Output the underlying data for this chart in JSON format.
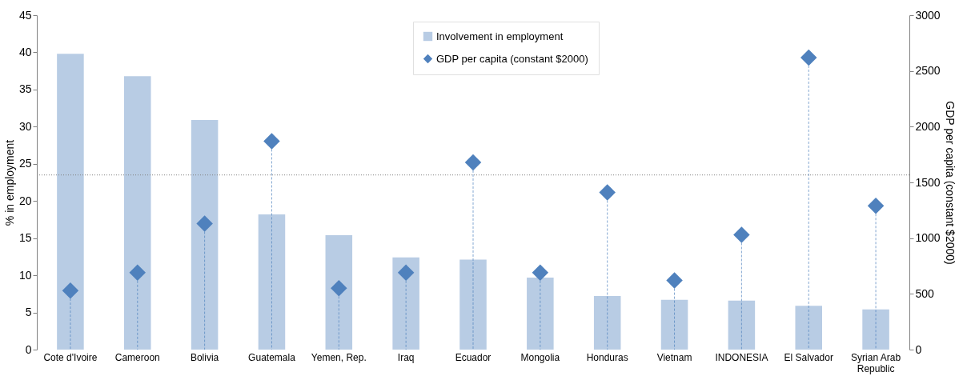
{
  "chart_data": {
    "type": "bar",
    "ylabel": "% in employment",
    "y2label": "GDP per capita (constant $2000)",
    "categories": [
      "Cote d'Ivoire",
      "Cameroon",
      "Bolivia",
      "Guatemala",
      "Yemen, Rep.",
      "Iraq",
      "Ecuador",
      "Mongolia",
      "Honduras",
      "Vietnam",
      "INDONESIA",
      "El Salvador",
      "Syrian Arab Republic"
    ],
    "series": [
      {
        "name": "Involvement in employment",
        "color": "#b8cce4",
        "values": [
          39.8,
          36.8,
          30.9,
          18.2,
          15.4,
          12.4,
          12.1,
          9.7,
          7.2,
          6.7,
          6.6,
          5.9,
          5.4
        ]
      },
      {
        "name": "GDP per capita (constant $2000)",
        "type": "lollipop",
        "axis": "y2",
        "marker": "diamond",
        "line_style": "dashed",
        "color": "#4f81bd",
        "values": [
          530,
          690,
          1130,
          1870,
          550,
          690,
          1680,
          690,
          1410,
          620,
          1030,
          2620,
          1290
        ]
      }
    ],
    "ylim": [
      0,
      45
    ],
    "yticks": [
      0,
      5,
      10,
      15,
      20,
      25,
      30,
      35,
      40,
      45
    ],
    "y2lim": [
      0,
      3000
    ],
    "y2ticks": [
      0,
      500,
      1000,
      1500,
      2000,
      2500,
      3000
    ],
    "ref_lines": [
      {
        "axis": "y",
        "value": 23.5,
        "line_style": "dotted",
        "color": "#808080"
      }
    ],
    "grid": false,
    "legend": "top"
  }
}
